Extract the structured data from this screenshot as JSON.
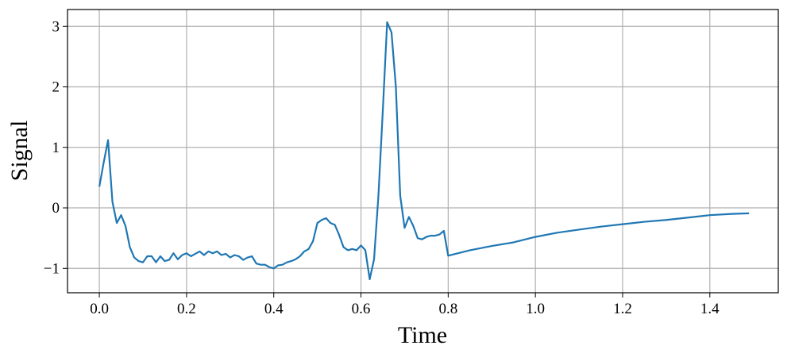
{
  "chart_data": {
    "type": "line",
    "x_label": "Time",
    "y_label": "Signal",
    "x": [
      0.0,
      0.01,
      0.02,
      0.03,
      0.04,
      0.05,
      0.06,
      0.07,
      0.08,
      0.09,
      0.1,
      0.11,
      0.12,
      0.13,
      0.14,
      0.15,
      0.16,
      0.17,
      0.18,
      0.19,
      0.2,
      0.21,
      0.22,
      0.23,
      0.24,
      0.25,
      0.26,
      0.27,
      0.28,
      0.29,
      0.3,
      0.31,
      0.32,
      0.33,
      0.34,
      0.35,
      0.36,
      0.37,
      0.38,
      0.39,
      0.4,
      0.41,
      0.42,
      0.43,
      0.44,
      0.45,
      0.46,
      0.47,
      0.48,
      0.49,
      0.5,
      0.51,
      0.52,
      0.53,
      0.54,
      0.55,
      0.56,
      0.57,
      0.58,
      0.59,
      0.6,
      0.61,
      0.62,
      0.63,
      0.64,
      0.65,
      0.66,
      0.67,
      0.68,
      0.69,
      0.7,
      0.71,
      0.72,
      0.73,
      0.74,
      0.75,
      0.76,
      0.77,
      0.78,
      0.79,
      0.8,
      0.85,
      0.9,
      0.95,
      1.0,
      1.05,
      1.1,
      1.15,
      1.2,
      1.25,
      1.3,
      1.35,
      1.4,
      1.45,
      1.49
    ],
    "series": [
      {
        "color": "#1f77b4",
        "values": [
          0.35,
          0.75,
          1.12,
          0.1,
          -0.25,
          -0.12,
          -0.3,
          -0.65,
          -0.82,
          -0.88,
          -0.9,
          -0.8,
          -0.8,
          -0.9,
          -0.8,
          -0.88,
          -0.86,
          -0.75,
          -0.85,
          -0.78,
          -0.75,
          -0.8,
          -0.76,
          -0.72,
          -0.78,
          -0.72,
          -0.75,
          -0.72,
          -0.78,
          -0.76,
          -0.82,
          -0.78,
          -0.8,
          -0.86,
          -0.82,
          -0.8,
          -0.92,
          -0.94,
          -0.94,
          -0.98,
          -1.0,
          -0.95,
          -0.94,
          -0.9,
          -0.88,
          -0.85,
          -0.8,
          -0.72,
          -0.68,
          -0.55,
          -0.25,
          -0.2,
          -0.17,
          -0.25,
          -0.28,
          -0.45,
          -0.65,
          -0.7,
          -0.68,
          -0.7,
          -0.62,
          -0.7,
          -1.18,
          -0.85,
          0.2,
          1.6,
          3.07,
          2.9,
          2.0,
          0.2,
          -0.33,
          -0.15,
          -0.3,
          -0.5,
          -0.52,
          -0.48,
          -0.46,
          -0.46,
          -0.44,
          -0.38,
          -0.79,
          -0.7,
          -0.63,
          -0.57,
          -0.48,
          -0.41,
          -0.36,
          -0.31,
          -0.27,
          -0.23,
          -0.2,
          -0.16,
          -0.12,
          -0.1,
          -0.09
        ]
      }
    ],
    "xlim": [
      -0.073,
      1.557
    ],
    "ylim": [
      -1.403,
      3.279
    ],
    "xticks": [
      {
        "value": 0.0,
        "label": "0.0"
      },
      0.2,
      0.4,
      0.6,
      0.8,
      {
        "value": 1.0,
        "label": "1.0"
      },
      1.2,
      1.4
    ],
    "yticks": [
      {
        "value": -1,
        "label": "−1"
      },
      0,
      1,
      2,
      3
    ],
    "grid": true
  }
}
